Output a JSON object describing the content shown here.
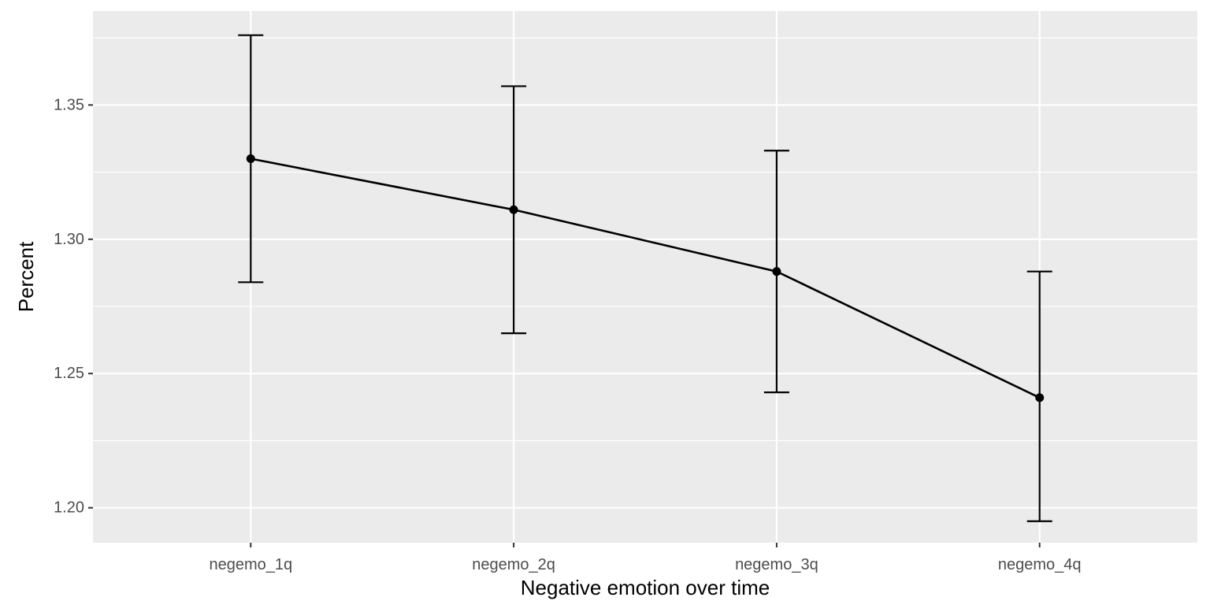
{
  "chart_data": {
    "type": "line",
    "title": "",
    "xlabel": "Negative emotion over time",
    "ylabel": "Percent",
    "categories": [
      "negemo_1q",
      "negemo_2q",
      "negemo_3q",
      "negemo_4q"
    ],
    "series": [
      {
        "values": [
          1.33,
          1.311,
          1.288,
          1.241
        ],
        "error_low": [
          1.284,
          1.265,
          1.243,
          1.195
        ],
        "error_high": [
          1.376,
          1.357,
          1.333,
          1.288
        ]
      }
    ],
    "ylim": [
      1.187,
      1.385
    ],
    "yticks": [
      1.2,
      1.25,
      1.3,
      1.35
    ],
    "ytick_labels": [
      "1.20",
      "1.25",
      "1.30",
      "1.35"
    ],
    "grid": true,
    "legend": "none",
    "colors": {
      "panel_background": "#ebebeb",
      "grid": "#ffffff",
      "line": "#000000",
      "tick_text": "#4d4d4d",
      "tick_mark": "#333333"
    }
  }
}
